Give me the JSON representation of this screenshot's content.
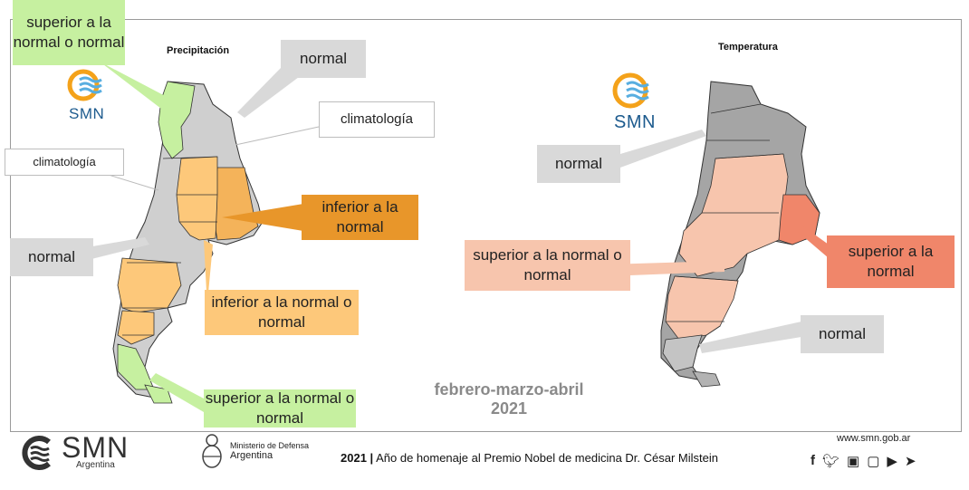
{
  "panels": {
    "left_title": "Precipitación",
    "right_title": "Temperatura"
  },
  "left_callouts": {
    "top_green": "superior a la normal o normal",
    "normal_top": "normal",
    "climatologia_top": "climatología",
    "climatologia_left": "climatología",
    "inferior_normal": "inferior a la normal",
    "normal_left": "normal",
    "inferior_o_normal": "inferior a la normal o normal",
    "bottom_green": "superior a la normal o normal"
  },
  "right_callouts": {
    "normal_top": "normal",
    "superior_o_normal": "superior a la normal o normal",
    "superior_normal": "superior a la normal",
    "normal_bottom": "normal"
  },
  "season": {
    "months": "febrero-marzo-abril",
    "year": "2021"
  },
  "logos": {
    "smn_small": "SMN",
    "smn_main": "SMN",
    "smn_main_sub": "Argentina",
    "ministry_line1": "Ministerio de Defensa",
    "ministry_line2": "Argentina"
  },
  "footer": {
    "year": "2021",
    "separator": "|",
    "text": "Año de homenaje al Premio Nobel de medicina Dr. César Milstein",
    "url": "www.smn.gob.ar",
    "social_icons": [
      "facebook-icon",
      "twitter-icon",
      "instagram-icon",
      "tv-icon",
      "youtube-icon",
      "telegram-icon"
    ]
  },
  "colors": {
    "green": "#c6f0a0",
    "orange_dark": "#e8962a",
    "orange": "#fdc87a",
    "pink": "#f7c5ad",
    "salmon": "#f0866a",
    "gray": "#d9d9d9",
    "smn_blue": "#1d5b8e"
  }
}
